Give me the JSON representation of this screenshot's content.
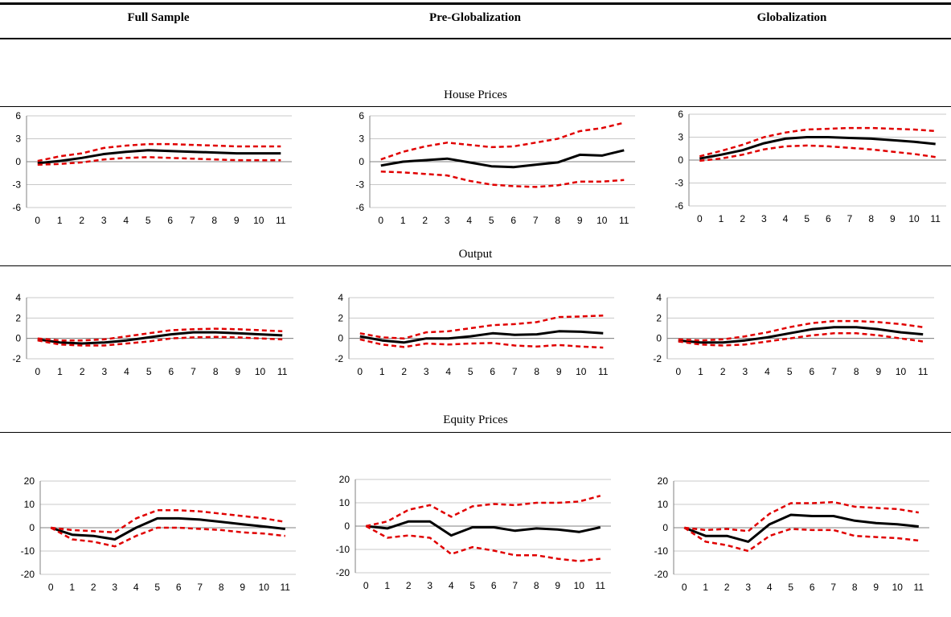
{
  "columns": [
    "Full Sample",
    "Pre-Globalization",
    "Globalization"
  ],
  "sections": [
    "House Prices",
    "Output",
    "Equity Prices"
  ],
  "colors": {
    "irf": "#000000",
    "band": "#e00000",
    "grid": "#c8c8c8",
    "axis": "#808080"
  },
  "chart_data": [
    {
      "type": "line",
      "section": "House Prices",
      "column": "Full Sample",
      "x": [
        0,
        1,
        2,
        3,
        4,
        5,
        6,
        7,
        8,
        9,
        10,
        11
      ],
      "ylim": [
        -6,
        6
      ],
      "yticks": [
        -6,
        -3,
        0,
        3,
        6
      ],
      "series": [
        {
          "role": "irf",
          "values": [
            -0.2,
            0.1,
            0.5,
            1.0,
            1.3,
            1.5,
            1.4,
            1.3,
            1.2,
            1.1,
            1.1,
            1.1
          ]
        },
        {
          "role": "band-upper",
          "values": [
            0.1,
            0.7,
            1.1,
            1.8,
            2.1,
            2.3,
            2.3,
            2.2,
            2.1,
            2.0,
            2.0,
            2.0
          ]
        },
        {
          "role": "band-lower",
          "values": [
            -0.4,
            -0.3,
            -0.1,
            0.3,
            0.5,
            0.6,
            0.5,
            0.4,
            0.3,
            0.2,
            0.2,
            0.2
          ]
        }
      ]
    },
    {
      "type": "line",
      "section": "House Prices",
      "column": "Pre-Globalization",
      "x": [
        0,
        1,
        2,
        3,
        4,
        5,
        6,
        7,
        8,
        9,
        10,
        11
      ],
      "ylim": [
        -6,
        6
      ],
      "yticks": [
        -6,
        -3,
        0,
        3,
        6
      ],
      "series": [
        {
          "role": "irf",
          "values": [
            -0.5,
            0,
            0.2,
            0.4,
            -0.1,
            -0.6,
            -0.7,
            -0.4,
            -0.1,
            0.9,
            0.8,
            1.5
          ]
        },
        {
          "role": "band-upper",
          "values": [
            0.3,
            1.3,
            2.0,
            2.5,
            2.2,
            1.9,
            2.0,
            2.5,
            3.0,
            4.0,
            4.4,
            5.1
          ]
        },
        {
          "role": "band-lower",
          "values": [
            -1.3,
            -1.4,
            -1.6,
            -1.8,
            -2.5,
            -3.0,
            -3.2,
            -3.3,
            -3.1,
            -2.6,
            -2.6,
            -2.4
          ]
        }
      ]
    },
    {
      "type": "line",
      "section": "House Prices",
      "column": "Globalization",
      "x": [
        0,
        1,
        2,
        3,
        4,
        5,
        6,
        7,
        8,
        9,
        10,
        11
      ],
      "ylim": [
        -6,
        6
      ],
      "yticks": [
        -6,
        -3,
        0,
        3,
        6
      ],
      "series": [
        {
          "role": "irf",
          "values": [
            0.2,
            0.7,
            1.3,
            2.2,
            2.8,
            3.0,
            3.0,
            2.9,
            2.8,
            2.6,
            2.4,
            2.1
          ]
        },
        {
          "role": "band-upper",
          "values": [
            0.5,
            1.2,
            2.0,
            3.0,
            3.6,
            4.0,
            4.1,
            4.2,
            4.2,
            4.1,
            4.0,
            3.8
          ]
        },
        {
          "role": "band-lower",
          "values": [
            -0.1,
            0.2,
            0.7,
            1.4,
            1.8,
            1.9,
            1.8,
            1.6,
            1.4,
            1.1,
            0.8,
            0.4
          ]
        }
      ]
    },
    {
      "type": "line",
      "section": "Output",
      "column": "Full Sample",
      "x": [
        0,
        1,
        2,
        3,
        4,
        5,
        6,
        7,
        8,
        9,
        10,
        11
      ],
      "ylim": [
        -2,
        4
      ],
      "yticks": [
        -2,
        0,
        2,
        4
      ],
      "series": [
        {
          "role": "irf",
          "values": [
            -0.1,
            -0.4,
            -0.5,
            -0.4,
            -0.2,
            0.1,
            0.4,
            0.6,
            0.6,
            0.5,
            0.4,
            0.3
          ]
        },
        {
          "role": "band-upper",
          "values": [
            0.0,
            -0.2,
            -0.2,
            -0.1,
            0.2,
            0.5,
            0.8,
            0.9,
            0.95,
            0.9,
            0.8,
            0.7
          ]
        },
        {
          "role": "band-lower",
          "values": [
            -0.2,
            -0.6,
            -0.7,
            -0.7,
            -0.5,
            -0.3,
            0.0,
            0.1,
            0.15,
            0.1,
            0.0,
            -0.1
          ]
        }
      ]
    },
    {
      "type": "line",
      "section": "Output",
      "column": "Pre-Globalization",
      "x": [
        0,
        1,
        2,
        3,
        4,
        5,
        6,
        7,
        8,
        9,
        10,
        11
      ],
      "ylim": [
        -2,
        4
      ],
      "yticks": [
        -2,
        0,
        2,
        4
      ],
      "series": [
        {
          "role": "irf",
          "values": [
            0.2,
            -0.2,
            -0.4,
            0.0,
            0.0,
            0.2,
            0.5,
            0.35,
            0.4,
            0.7,
            0.65,
            0.5
          ]
        },
        {
          "role": "band-upper",
          "values": [
            0.5,
            0.1,
            0.0,
            0.6,
            0.7,
            1.0,
            1.3,
            1.4,
            1.6,
            2.1,
            2.15,
            2.25
          ]
        },
        {
          "role": "band-lower",
          "values": [
            -0.1,
            -0.6,
            -0.85,
            -0.5,
            -0.6,
            -0.5,
            -0.45,
            -0.7,
            -0.8,
            -0.65,
            -0.8,
            -0.9
          ]
        }
      ]
    },
    {
      "type": "line",
      "section": "Output",
      "column": "Globalization",
      "x": [
        0,
        1,
        2,
        3,
        4,
        5,
        6,
        7,
        8,
        9,
        10,
        11
      ],
      "ylim": [
        -2,
        4
      ],
      "yticks": [
        -2,
        0,
        2,
        4
      ],
      "series": [
        {
          "role": "irf",
          "values": [
            -0.2,
            -0.4,
            -0.4,
            -0.2,
            0.1,
            0.5,
            0.9,
            1.1,
            1.1,
            0.9,
            0.6,
            0.4
          ]
        },
        {
          "role": "band-upper",
          "values": [
            -0.1,
            -0.2,
            -0.1,
            0.2,
            0.6,
            1.1,
            1.5,
            1.7,
            1.7,
            1.6,
            1.4,
            1.1
          ]
        },
        {
          "role": "band-lower",
          "values": [
            -0.3,
            -0.6,
            -0.7,
            -0.6,
            -0.3,
            0.0,
            0.3,
            0.5,
            0.5,
            0.3,
            0.0,
            -0.3
          ]
        }
      ]
    },
    {
      "type": "line",
      "section": "Equity Prices",
      "column": "Full Sample",
      "x": [
        0,
        1,
        2,
        3,
        4,
        5,
        6,
        7,
        8,
        9,
        10,
        11
      ],
      "ylim": [
        -20,
        20
      ],
      "yticks": [
        -20,
        -10,
        0,
        10,
        20
      ],
      "series": [
        {
          "role": "irf",
          "values": [
            0,
            -3,
            -3.5,
            -5,
            0,
            4,
            4,
            3.5,
            2.5,
            1.5,
            0.5,
            -0.5
          ]
        },
        {
          "role": "band-upper",
          "values": [
            0,
            -1,
            -1.5,
            -2,
            4,
            7.5,
            7.5,
            7,
            6,
            5,
            4,
            2.5
          ]
        },
        {
          "role": "band-lower",
          "values": [
            0,
            -5,
            -6,
            -8,
            -3.5,
            0,
            0,
            -0.5,
            -1,
            -2,
            -2.5,
            -3.5
          ]
        }
      ]
    },
    {
      "type": "line",
      "section": "Equity Prices",
      "column": "Pre-Globalization",
      "x": [
        0,
        1,
        2,
        3,
        4,
        5,
        6,
        7,
        8,
        9,
        10,
        11
      ],
      "ylim": [
        -20,
        20
      ],
      "yticks": [
        -20,
        -10,
        0,
        10,
        20
      ],
      "series": [
        {
          "role": "irf",
          "values": [
            0,
            -1,
            2,
            2,
            -4,
            -0.5,
            -0.5,
            -2,
            -1,
            -1.5,
            -2.5,
            -0.5
          ]
        },
        {
          "role": "band-upper",
          "values": [
            0,
            2,
            7,
            9,
            4,
            8.5,
            9.5,
            9,
            10,
            10,
            10.5,
            13
          ]
        },
        {
          "role": "band-lower",
          "values": [
            0,
            -5,
            -4,
            -5,
            -12,
            -9,
            -10.5,
            -12.5,
            -12.5,
            -14,
            -15,
            -14
          ]
        }
      ]
    },
    {
      "type": "line",
      "section": "Equity Prices",
      "column": "Globalization",
      "x": [
        0,
        1,
        2,
        3,
        4,
        5,
        6,
        7,
        8,
        9,
        10,
        11
      ],
      "ylim": [
        -20,
        20
      ],
      "yticks": [
        -20,
        -10,
        0,
        10,
        20
      ],
      "series": [
        {
          "role": "irf",
          "values": [
            0,
            -3.5,
            -3.5,
            -6,
            1.5,
            5.5,
            5,
            5,
            3,
            2,
            1.5,
            0.5
          ]
        },
        {
          "role": "band-upper",
          "values": [
            0,
            -1,
            -0.5,
            -1.5,
            6,
            10.5,
            10.5,
            11,
            9,
            8.5,
            8,
            6.5
          ]
        },
        {
          "role": "band-lower",
          "values": [
            0,
            -6,
            -7.5,
            -10,
            -3.5,
            -0.5,
            -1,
            -1,
            -3.5,
            -4,
            -4.5,
            -5.5
          ]
        }
      ]
    }
  ]
}
